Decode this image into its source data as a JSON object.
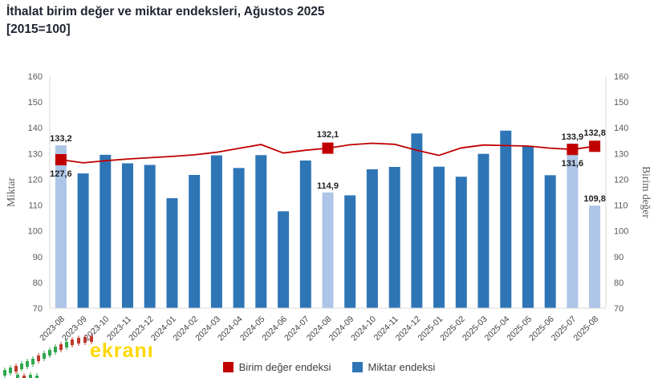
{
  "title": {
    "line1": "İthalat birim değer ve miktar endeksleri, Ağustos 2025",
    "line2": "[2015=100]"
  },
  "watermark": {
    "text": "ekranı",
    "accent_color": "#ffd800"
  },
  "legend": [
    {
      "label": "Birim değer endeksi",
      "color": "#c00000"
    },
    {
      "label": "Miktar endeksi",
      "color": "#2e75b6"
    }
  ],
  "chart_data": {
    "type": "bar",
    "title": "İthalat birim değer ve miktar endeksleri, Ağustos 2025 [2015=100]",
    "categories": [
      "2023-08",
      "2023-09",
      "2023-10",
      "2023-11",
      "2023-12",
      "2024-01",
      "2024-02",
      "2024-03",
      "2024-04",
      "2024-05",
      "2024-06",
      "2024-07",
      "2024-08",
      "2024-09",
      "2024-10",
      "2024-11",
      "2024-12",
      "2025-01",
      "2025-02",
      "2025-03",
      "2025-04",
      "2025-05",
      "2025-06",
      "2025-07",
      "2025-08"
    ],
    "series": [
      {
        "name": "Miktar endeksi",
        "type": "bar",
        "color": "#2e75b6",
        "highlight_color": "#adc5e7",
        "highlight_indices": [
          0,
          12,
          23,
          24
        ],
        "values": [
          133.2,
          122.3,
          129.5,
          126.2,
          125.6,
          112.7,
          121.7,
          129.3,
          124.4,
          129.4,
          107.6,
          127.3,
          114.9,
          113.8,
          123.9,
          124.8,
          137.8,
          124.9,
          121.0,
          129.9,
          138.9,
          133.0,
          121.6,
          133.9,
          109.8
        ]
      },
      {
        "name": "Birim değer endeksi",
        "type": "line",
        "color": "#c00000",
        "marker_indices": [
          0,
          12,
          23,
          24
        ],
        "values": [
          127.6,
          126.4,
          127.2,
          127.9,
          128.4,
          128.9,
          129.5,
          130.5,
          132.0,
          133.5,
          130.2,
          131.3,
          132.1,
          133.4,
          134.0,
          133.6,
          131.3,
          129.3,
          132.2,
          133.3,
          133.1,
          132.9,
          132.1,
          131.6,
          132.8
        ]
      }
    ],
    "annotations": [
      {
        "series": "bar",
        "index": 0,
        "text": "133,2",
        "placement": "above"
      },
      {
        "series": "line",
        "index": 0,
        "text": "127,6",
        "placement": "below"
      },
      {
        "series": "line",
        "index": 12,
        "text": "132,1",
        "placement": "above"
      },
      {
        "series": "bar",
        "index": 12,
        "text": "114,9",
        "placement": "above"
      },
      {
        "series": "bar",
        "index": 23,
        "text": "133,9",
        "placement": "above"
      },
      {
        "series": "line",
        "index": 23,
        "text": "131,6",
        "placement": "below"
      },
      {
        "series": "line",
        "index": 24,
        "text": "132,8",
        "placement": "above"
      },
      {
        "series": "bar",
        "index": 24,
        "text": "109,8",
        "placement": "above"
      }
    ],
    "y_axis": {
      "min": 70,
      "max": 160,
      "step": 10,
      "left_title": "Miktar",
      "right_title": "Birim değer",
      "tick_labels": [
        "70",
        "80",
        "90",
        "100",
        "110",
        "120",
        "130",
        "140",
        "150",
        "160"
      ]
    },
    "grid": false,
    "legend_position": "bottom-center"
  }
}
